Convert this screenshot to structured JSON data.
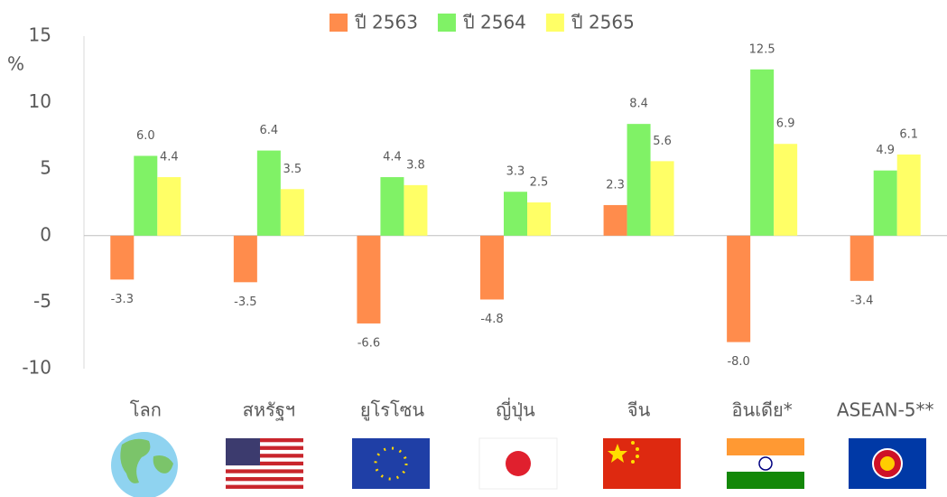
{
  "chart_data": {
    "type": "bar",
    "y_label": "%",
    "categories": [
      "โลก",
      "สหรัฐฯ",
      "ยูโรโซน",
      "ญี่ปุ่น",
      "จีน",
      "อินเดีย*",
      "ASEAN-5**"
    ],
    "series": [
      {
        "name": "ปี 2563",
        "color": "#ff8c4c",
        "values": [
          -3.3,
          -3.5,
          -6.6,
          -4.8,
          2.3,
          -8.0,
          -3.4
        ],
        "value_labels": [
          "-3.3",
          "-3.5",
          "-6.6",
          "-4.8",
          "2.3",
          "-8.0",
          "-3.4"
        ]
      },
      {
        "name": "ปี 2564",
        "color": "#80f266",
        "values": [
          6.0,
          6.4,
          4.4,
          3.3,
          8.4,
          12.5,
          4.9
        ],
        "value_labels": [
          "6.0",
          "6.4",
          "4.4",
          "3.3",
          "8.4",
          "12.5",
          "4.9"
        ]
      },
      {
        "name": "ปี 2565",
        "color": "#ffff66",
        "values": [
          4.4,
          3.5,
          3.8,
          2.5,
          5.6,
          6.9,
          6.1
        ],
        "value_labels": [
          "4.4",
          "3.5",
          "3.8",
          "2.5",
          "5.6",
          "6.9",
          "6.1"
        ]
      }
    ],
    "ylim": [
      -10,
      15
    ],
    "yticks": [
      -10,
      -5,
      0,
      5,
      10,
      15
    ],
    "legend": "top"
  }
}
